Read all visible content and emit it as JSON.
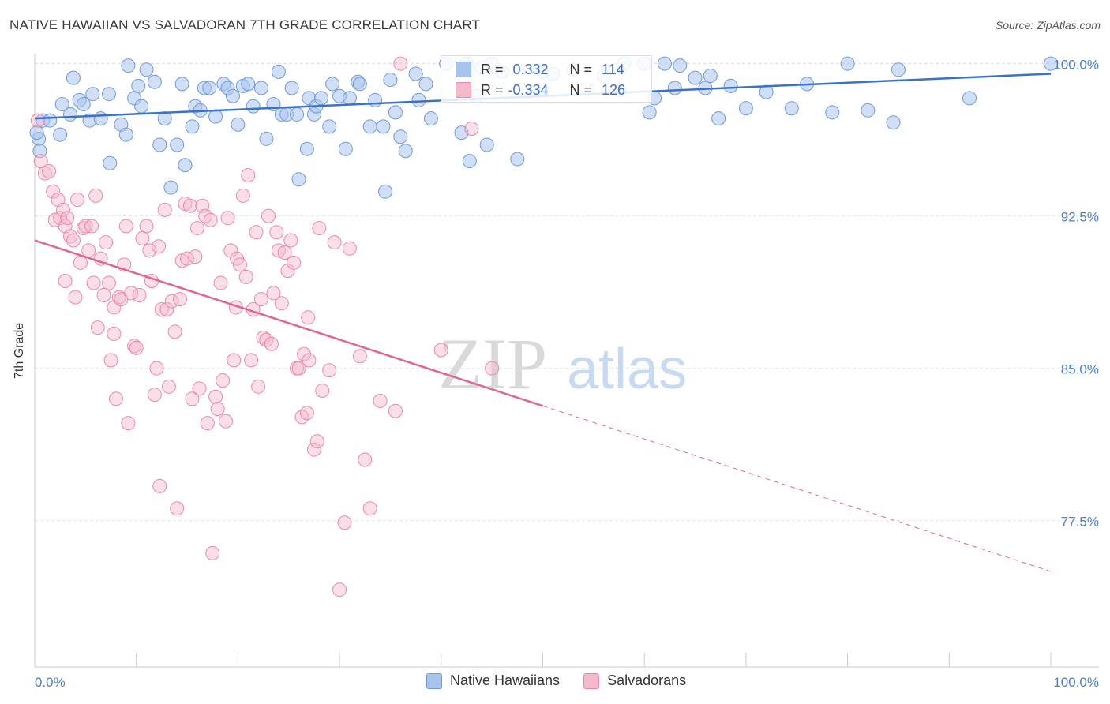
{
  "header": {
    "title": "NATIVE HAWAIIAN VS SALVADORAN 7TH GRADE CORRELATION CHART",
    "source": "Source: ZipAtlas.com"
  },
  "stats": {
    "rows": [
      {
        "r_label": "R =",
        "r_value": "0.332",
        "n_label": "N =",
        "n_value": "114"
      },
      {
        "r_label": "R =",
        "r_value": "-0.334",
        "n_label": "N =",
        "n_value": "126"
      }
    ]
  },
  "watermark": {
    "zip": "ZIP",
    "atlas": "atlas"
  },
  "legend": {
    "items": [
      "Native Hawaiians",
      "Salvadorans"
    ]
  },
  "colors": {
    "blue_fill": "#a9c4ec",
    "blue_stroke": "#6f9ad9",
    "blue_line": "#3a72c9",
    "pink_fill": "#f4b9cb",
    "pink_stroke": "#e98aa8",
    "pink_line": "#e0668e",
    "grid": "#e6e6e6",
    "tick_text": "#4a7fd0"
  },
  "chart_data": {
    "type": "scatter",
    "title": "NATIVE HAWAIIAN VS SALVADORAN 7TH GRADE CORRELATION CHART",
    "xlabel": "",
    "ylabel": "7th Grade",
    "xlim": [
      0,
      100
    ],
    "ylim": [
      70.3,
      100.8
    ],
    "y_ticks": [
      77.5,
      85.0,
      92.5,
      100.0
    ],
    "y_tick_labels": [
      "77.5%",
      "85.0%",
      "92.5%",
      "100.0%"
    ],
    "x_tick_labels": [
      "0.0%",
      "100.0%"
    ],
    "grid": true,
    "legend_position": "bottom",
    "series": [
      {
        "name": "Native Hawaiians",
        "color": "#6f9ad9",
        "trend": {
          "x": [
            0,
            100
          ],
          "y": [
            97.3,
            99.5
          ],
          "dashed_from": null
        },
        "points": [
          [
            0.4,
            96.3
          ],
          [
            0.5,
            95.7
          ],
          [
            0.8,
            97.2
          ],
          [
            1.5,
            97.2
          ],
          [
            2.5,
            96.5
          ],
          [
            2.7,
            98.0
          ],
          [
            3.5,
            97.5
          ],
          [
            3.8,
            99.3
          ],
          [
            4.4,
            98.2
          ],
          [
            4.8,
            98.0
          ],
          [
            5.4,
            97.2
          ],
          [
            5.7,
            98.5
          ],
          [
            6.5,
            97.3
          ],
          [
            7.3,
            98.5
          ],
          [
            7.4,
            95.1
          ],
          [
            8.5,
            97.0
          ],
          [
            9.0,
            96.5
          ],
          [
            9.2,
            99.9
          ],
          [
            9.8,
            98.3
          ],
          [
            10.2,
            98.9
          ],
          [
            10.5,
            97.9
          ],
          [
            11.0,
            99.7
          ],
          [
            11.8,
            99.1
          ],
          [
            12.3,
            96.0
          ],
          [
            12.8,
            97.3
          ],
          [
            13.4,
            93.9
          ],
          [
            14.0,
            96.0
          ],
          [
            14.5,
            99.0
          ],
          [
            14.8,
            95.0
          ],
          [
            15.5,
            96.9
          ],
          [
            15.8,
            97.9
          ],
          [
            16.3,
            97.7
          ],
          [
            16.7,
            98.8
          ],
          [
            17.2,
            98.8
          ],
          [
            17.8,
            97.4
          ],
          [
            18.6,
            99.0
          ],
          [
            19.0,
            98.8
          ],
          [
            19.5,
            98.4
          ],
          [
            20.0,
            97.0
          ],
          [
            20.5,
            98.9
          ],
          [
            21.0,
            99.0
          ],
          [
            21.5,
            97.9
          ],
          [
            22.3,
            98.8
          ],
          [
            22.8,
            96.3
          ],
          [
            23.5,
            98.0
          ],
          [
            24.0,
            99.6
          ],
          [
            24.3,
            97.5
          ],
          [
            24.8,
            97.5
          ],
          [
            25.3,
            98.8
          ],
          [
            25.8,
            97.5
          ],
          [
            26.0,
            94.3
          ],
          [
            26.8,
            95.8
          ],
          [
            27.0,
            98.3
          ],
          [
            27.5,
            97.5
          ],
          [
            27.7,
            97.9
          ],
          [
            28.2,
            98.3
          ],
          [
            29.0,
            96.9
          ],
          [
            29.3,
            99.0
          ],
          [
            30.0,
            98.4
          ],
          [
            30.6,
            95.8
          ],
          [
            31.0,
            98.3
          ],
          [
            31.8,
            99.1
          ],
          [
            32.0,
            99.0
          ],
          [
            33.0,
            96.9
          ],
          [
            33.5,
            98.2
          ],
          [
            34.3,
            96.9
          ],
          [
            34.5,
            93.7
          ],
          [
            35.0,
            99.2
          ],
          [
            35.5,
            97.6
          ],
          [
            36.0,
            96.4
          ],
          [
            36.5,
            95.7
          ],
          [
            37.5,
            99.5
          ],
          [
            37.8,
            98.2
          ],
          [
            38.5,
            99.0
          ],
          [
            39.0,
            97.3
          ],
          [
            40.5,
            100.0
          ],
          [
            42.0,
            96.6
          ],
          [
            42.5,
            100.0
          ],
          [
            42.8,
            95.2
          ],
          [
            43.5,
            98.4
          ],
          [
            44.0,
            99.8
          ],
          [
            44.5,
            96.0
          ],
          [
            45.0,
            100.0
          ],
          [
            46.0,
            99.6
          ],
          [
            47.5,
            95.3
          ],
          [
            50.0,
            99.6
          ],
          [
            51.0,
            99.5
          ],
          [
            53.0,
            99.7
          ],
          [
            56.0,
            99.4
          ],
          [
            57.5,
            98.7
          ],
          [
            58.0,
            100.0
          ],
          [
            60.0,
            100.0
          ],
          [
            60.5,
            97.6
          ],
          [
            61.0,
            98.3
          ],
          [
            62.0,
            100.0
          ],
          [
            63.0,
            98.8
          ],
          [
            63.5,
            99.9
          ],
          [
            65.0,
            99.3
          ],
          [
            66.0,
            98.8
          ],
          [
            66.5,
            99.4
          ],
          [
            67.3,
            97.3
          ],
          [
            68.5,
            98.9
          ],
          [
            70.0,
            97.8
          ],
          [
            72.0,
            98.6
          ],
          [
            74.5,
            97.8
          ],
          [
            76.0,
            99.0
          ],
          [
            78.5,
            97.6
          ],
          [
            80.0,
            100.0
          ],
          [
            82.0,
            97.7
          ],
          [
            84.5,
            97.1
          ],
          [
            85.0,
            99.7
          ],
          [
            92.0,
            98.3
          ],
          [
            100.0,
            100.0
          ],
          [
            0.2,
            96.6
          ]
        ]
      },
      {
        "name": "Salvadorans",
        "color": "#e98aa8",
        "trend": {
          "x": [
            0,
            100
          ],
          "y": [
            91.3,
            75.0
          ],
          "dashed_from": 50
        },
        "points": [
          [
            0.3,
            97.2
          ],
          [
            0.6,
            95.2
          ],
          [
            1.0,
            94.6
          ],
          [
            1.4,
            94.7
          ],
          [
            1.8,
            93.7
          ],
          [
            2.0,
            92.3
          ],
          [
            2.3,
            93.3
          ],
          [
            2.5,
            92.4
          ],
          [
            2.8,
            92.8
          ],
          [
            3.0,
            92.0
          ],
          [
            3.2,
            92.4
          ],
          [
            3.5,
            91.5
          ],
          [
            3.8,
            91.3
          ],
          [
            4.0,
            88.5
          ],
          [
            4.2,
            93.3
          ],
          [
            4.5,
            90.2
          ],
          [
            4.8,
            91.9
          ],
          [
            5.0,
            92.0
          ],
          [
            5.3,
            90.8
          ],
          [
            5.6,
            92.0
          ],
          [
            5.8,
            89.2
          ],
          [
            6.0,
            93.5
          ],
          [
            6.2,
            87.0
          ],
          [
            6.5,
            90.4
          ],
          [
            6.8,
            88.6
          ],
          [
            7.0,
            91.2
          ],
          [
            7.3,
            89.2
          ],
          [
            7.5,
            85.4
          ],
          [
            7.8,
            88.0
          ],
          [
            8.0,
            83.5
          ],
          [
            8.3,
            88.5
          ],
          [
            8.5,
            88.4
          ],
          [
            8.8,
            90.1
          ],
          [
            9.0,
            92.0
          ],
          [
            9.2,
            82.3
          ],
          [
            9.5,
            88.7
          ],
          [
            9.8,
            86.1
          ],
          [
            10.0,
            86.0
          ],
          [
            10.3,
            88.6
          ],
          [
            10.6,
            91.4
          ],
          [
            11.0,
            92.0
          ],
          [
            11.3,
            90.8
          ],
          [
            11.5,
            89.3
          ],
          [
            11.8,
            83.7
          ],
          [
            12.0,
            85.0
          ],
          [
            12.3,
            79.2
          ],
          [
            12.5,
            87.9
          ],
          [
            12.8,
            92.8
          ],
          [
            13.0,
            87.9
          ],
          [
            13.2,
            84.1
          ],
          [
            13.5,
            88.3
          ],
          [
            13.8,
            86.8
          ],
          [
            14.0,
            78.1
          ],
          [
            14.3,
            88.4
          ],
          [
            14.5,
            90.3
          ],
          [
            14.8,
            93.1
          ],
          [
            15.0,
            90.4
          ],
          [
            15.3,
            93.0
          ],
          [
            15.5,
            83.5
          ],
          [
            15.8,
            90.5
          ],
          [
            16.0,
            91.9
          ],
          [
            16.2,
            84.0
          ],
          [
            16.5,
            93.0
          ],
          [
            16.8,
            92.5
          ],
          [
            17.0,
            82.3
          ],
          [
            17.3,
            92.3
          ],
          [
            17.5,
            75.9
          ],
          [
            17.8,
            83.6
          ],
          [
            18.0,
            83.0
          ],
          [
            18.3,
            89.2
          ],
          [
            18.5,
            84.4
          ],
          [
            18.8,
            82.4
          ],
          [
            19.0,
            92.4
          ],
          [
            19.3,
            90.8
          ],
          [
            19.6,
            85.4
          ],
          [
            19.9,
            90.4
          ],
          [
            20.2,
            90.1
          ],
          [
            20.5,
            93.5
          ],
          [
            20.8,
            89.5
          ],
          [
            21.0,
            94.5
          ],
          [
            21.3,
            85.4
          ],
          [
            21.5,
            87.9
          ],
          [
            21.8,
            91.7
          ],
          [
            22.0,
            84.1
          ],
          [
            22.3,
            88.4
          ],
          [
            22.5,
            86.5
          ],
          [
            22.8,
            86.4
          ],
          [
            23.0,
            92.5
          ],
          [
            23.3,
            86.2
          ],
          [
            23.5,
            88.7
          ],
          [
            23.8,
            91.7
          ],
          [
            24.0,
            90.8
          ],
          [
            24.3,
            88.2
          ],
          [
            24.6,
            90.7
          ],
          [
            24.9,
            89.8
          ],
          [
            25.2,
            91.3
          ],
          [
            25.5,
            90.2
          ],
          [
            25.8,
            85.0
          ],
          [
            26.0,
            85.0
          ],
          [
            26.3,
            82.6
          ],
          [
            26.5,
            85.7
          ],
          [
            26.8,
            82.8
          ],
          [
            27.0,
            85.4
          ],
          [
            27.5,
            81.0
          ],
          [
            27.8,
            81.4
          ],
          [
            28.0,
            91.9
          ],
          [
            28.3,
            83.9
          ],
          [
            29.0,
            84.9
          ],
          [
            29.5,
            91.2
          ],
          [
            30.0,
            74.1
          ],
          [
            30.5,
            77.4
          ],
          [
            31.0,
            90.9
          ],
          [
            32.0,
            85.6
          ],
          [
            33.0,
            78.1
          ],
          [
            34.0,
            83.4
          ],
          [
            35.5,
            82.9
          ],
          [
            36.0,
            100.0
          ],
          [
            43.0,
            96.8
          ],
          [
            45.0,
            85.0
          ],
          [
            32.5,
            80.5
          ],
          [
            3.0,
            89.3
          ],
          [
            7.8,
            86.7
          ],
          [
            12.2,
            91.0
          ],
          [
            19.8,
            88.0
          ],
          [
            26.9,
            87.5
          ],
          [
            40.0,
            85.9
          ]
        ]
      }
    ]
  }
}
